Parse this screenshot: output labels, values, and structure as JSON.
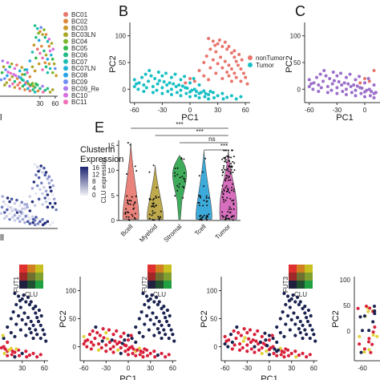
{
  "panels": {
    "B": "B",
    "C": "C",
    "E": "E"
  },
  "colors": {
    "nonTumor": "#e8766d",
    "Tumor": "#19bfc4",
    "navy": "#1b2350",
    "B": "#e8766d",
    "Myeloid": "#b8a13a",
    "Stromal": "#2aa44a",
    "Tcell": "#27a3d9",
    "TumorViolin": "#d35fb7",
    "panelC": "#9b6fca",
    "redDot": "#d8203a",
    "yellowDot": "#e0d23a"
  },
  "legend_samples": [
    "BC01",
    "BC02",
    "BC03",
    "BC03LN",
    "BC04",
    "BC05",
    "BC06",
    "BC07",
    "BC07LN",
    "BC08",
    "BC09",
    "BC09_Re",
    "BC10",
    "BC11"
  ],
  "legend_sample_colors": [
    "#e8766d",
    "#dd8a3d",
    "#c9992c",
    "#a9a82a",
    "#7cb72c",
    "#33ba4b",
    "#22bb83",
    "#1fbdb1",
    "#22b3d4",
    "#27a3e8",
    "#6f8ff3",
    "#a97cf0",
    "#d96ee0",
    "#ef6fb5"
  ],
  "legend_group": [
    "nonTumor",
    "Tumor"
  ],
  "clusterin": {
    "title_line1": "Clusterin",
    "title_line2": "Expression",
    "ticks": [
      "16",
      "12",
      "8",
      "4",
      "0"
    ]
  },
  "fut_labels": [
    "FUT1",
    "FUT2",
    "FUT3"
  ],
  "clu_label": "CLU",
  "chart_data": [
    {
      "type": "scatter",
      "title": "",
      "xlabel": "PC1",
      "ylabel": "PC2",
      "xticks": [
        "-60",
        "-30",
        "0",
        "30",
        "60"
      ],
      "yticks": [
        "100",
        "50",
        "0"
      ],
      "xlim": [
        -65,
        65
      ],
      "ylim": [
        -25,
        125
      ],
      "series": [
        {
          "name": "nonTumor",
          "points": [
            [
              20,
              95
            ],
            [
              25,
              90
            ],
            [
              30,
              85
            ],
            [
              35,
              80
            ],
            [
              40,
              75
            ],
            [
              45,
              68
            ],
            [
              48,
              60
            ],
            [
              50,
              52
            ],
            [
              52,
              45
            ],
            [
              55,
              38
            ],
            [
              58,
              30
            ],
            [
              60,
              22
            ],
            [
              28,
              70
            ],
            [
              33,
              60
            ],
            [
              38,
              52
            ],
            [
              42,
              45
            ],
            [
              45,
              38
            ],
            [
              48,
              30
            ],
            [
              50,
              22
            ],
            [
              22,
              75
            ],
            [
              18,
              62
            ],
            [
              25,
              55
            ],
            [
              30,
              48
            ],
            [
              35,
              40
            ],
            [
              40,
              32
            ],
            [
              42,
              25
            ],
            [
              35,
              20
            ],
            [
              28,
              30
            ],
            [
              22,
              40
            ],
            [
              15,
              50
            ],
            [
              10,
              35
            ],
            [
              15,
              25
            ],
            [
              20,
              18
            ],
            [
              5,
              15
            ],
            [
              0,
              20
            ],
            [
              -5,
              12
            ],
            [
              45,
              15
            ],
            [
              55,
              15
            ],
            [
              62,
              10
            ],
            [
              32,
              92
            ],
            [
              38,
              88
            ],
            [
              27,
              82
            ],
            [
              42,
              80
            ],
            [
              48,
              72
            ],
            [
              53,
              65
            ],
            [
              56,
              55
            ]
          ]
        },
        {
          "name": "Tumor",
          "points": [
            [
              -60,
              18
            ],
            [
              -55,
              12
            ],
            [
              -50,
              8
            ],
            [
              -45,
              15
            ],
            [
              -40,
              5
            ],
            [
              -35,
              10
            ],
            [
              -30,
              3
            ],
            [
              -25,
              8
            ],
            [
              -20,
              0
            ],
            [
              -15,
              5
            ],
            [
              -10,
              -2
            ],
            [
              -5,
              3
            ],
            [
              0,
              -5
            ],
            [
              5,
              0
            ],
            [
              10,
              -8
            ],
            [
              15,
              -3
            ],
            [
              20,
              -10
            ],
            [
              25,
              -6
            ],
            [
              30,
              -12
            ],
            [
              35,
              -8
            ],
            [
              40,
              -15
            ],
            [
              45,
              -12
            ],
            [
              50,
              -18
            ],
            [
              55,
              -14
            ],
            [
              -52,
              22
            ],
            [
              -48,
              28
            ],
            [
              -42,
              25
            ],
            [
              -38,
              20
            ],
            [
              -33,
              16
            ],
            [
              -28,
              14
            ],
            [
              -22,
              12
            ],
            [
              -18,
              10
            ],
            [
              -12,
              8
            ],
            [
              -8,
              6
            ],
            [
              -3,
              2
            ],
            [
              2,
              -2
            ],
            [
              7,
              -4
            ],
            [
              12,
              -6
            ],
            [
              17,
              -8
            ],
            [
              22,
              -4
            ],
            [
              -58,
              10
            ],
            [
              -47,
              3
            ],
            [
              -36,
              -2
            ],
            [
              -24,
              -4
            ],
            [
              -14,
              -6
            ],
            [
              -4,
              -8
            ],
            [
              6,
              -12
            ],
            [
              16,
              -14
            ],
            [
              26,
              -16
            ],
            [
              36,
              -18
            ],
            [
              -30,
              25
            ],
            [
              -20,
              22
            ],
            [
              -10,
              18
            ],
            [
              0,
              12
            ],
            [
              10,
              8
            ],
            [
              -44,
              35
            ],
            [
              -34,
              32
            ],
            [
              -26,
              30
            ],
            [
              -16,
              28
            ],
            [
              -6,
              24
            ],
            [
              4,
              20
            ],
            [
              -60,
              5
            ],
            [
              -56,
              0
            ],
            [
              -50,
              -4
            ],
            [
              -40,
              -6
            ],
            [
              -30,
              -8
            ],
            [
              -20,
              -10
            ],
            [
              -10,
              -12
            ],
            [
              0,
              -14
            ],
            [
              10,
              -16
            ],
            [
              20,
              -18
            ]
          ]
        }
      ]
    },
    {
      "type": "violin",
      "title": "",
      "xlabel": "",
      "ylabel": "CLU expression",
      "categories": [
        "Bcell",
        "Myeloid",
        "Stromal",
        "Tcell",
        "Tumor"
      ],
      "yticks": [
        "0",
        "5",
        "10",
        "15"
      ],
      "ylim": [
        0,
        16
      ],
      "medians": [
        2,
        2,
        8.5,
        2,
        6
      ],
      "maxima": [
        15.5,
        11,
        13,
        14,
        14
      ],
      "significance": [
        "***",
        "***",
        "ns",
        "***"
      ]
    }
  ]
}
